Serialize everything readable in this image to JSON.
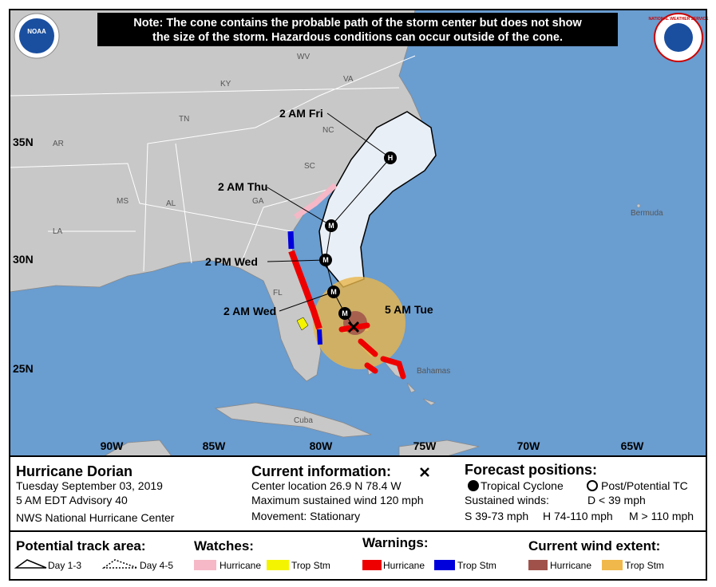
{
  "note": [
    "Note: The cone contains the probable path of the storm center but does not show",
    "the size of the storm. Hazardous conditions can occur outside of the cone."
  ],
  "logos": {
    "noaa": "NOAA",
    "nws": "NATIONAL WEATHER SERVICE"
  },
  "map": {
    "states": [
      "WV",
      "VA",
      "KY",
      "NC",
      "TN",
      "SC",
      "AR",
      "MS",
      "AL",
      "GA",
      "LA",
      "FL"
    ],
    "places": [
      "Bermuda",
      "Bahamas",
      "Cuba"
    ],
    "latitudes": [
      "35N",
      "30N",
      "25N"
    ],
    "longitudes": [
      "90W",
      "85W",
      "80W",
      "75W",
      "70W",
      "65W"
    ],
    "forecast_points": [
      {
        "label": "2 AM Fri",
        "marker": "H"
      },
      {
        "label": "2 AM Thu",
        "marker": "M"
      },
      {
        "label": "2 PM Wed",
        "marker": "M"
      },
      {
        "label": "2 AM Wed",
        "marker": "M"
      },
      {
        "label": "5 AM Tue",
        "marker": "M"
      }
    ]
  },
  "panel": {
    "storm": {
      "title": "Hurricane Dorian",
      "lines": [
        "Tuesday September 03, 2019",
        "5 AM EDT Advisory 40",
        "NWS National Hurricane Center"
      ]
    },
    "current": {
      "title": "Current information:",
      "lines": [
        "Center location 26.9 N 78.4 W",
        "Maximum sustained wind 120 mph",
        "Movement: Stationary"
      ]
    },
    "forecast": {
      "title": "Forecast positions:",
      "tropical": "Tropical Cyclone",
      "post": "Post/Potential TC",
      "winds": "Sustained winds:",
      "d": "D < 39 mph",
      "s": "S 39-73 mph",
      "h": "H 74-110 mph",
      "m": "M > 110 mph"
    },
    "track": {
      "title": "Potential track area:",
      "day13": "Day 1-3",
      "day45": "Day 4-5"
    },
    "watches": {
      "title": "Watches:",
      "hurricane": "Hurricane",
      "storm": "Trop Stm"
    },
    "warnings": {
      "title": "Warnings:",
      "hurricane": "Hurricane",
      "storm": "Trop Stm"
    },
    "wind": {
      "title": "Current wind extent:",
      "hurricane": "Hurricane",
      "storm": "Trop Stm"
    }
  }
}
